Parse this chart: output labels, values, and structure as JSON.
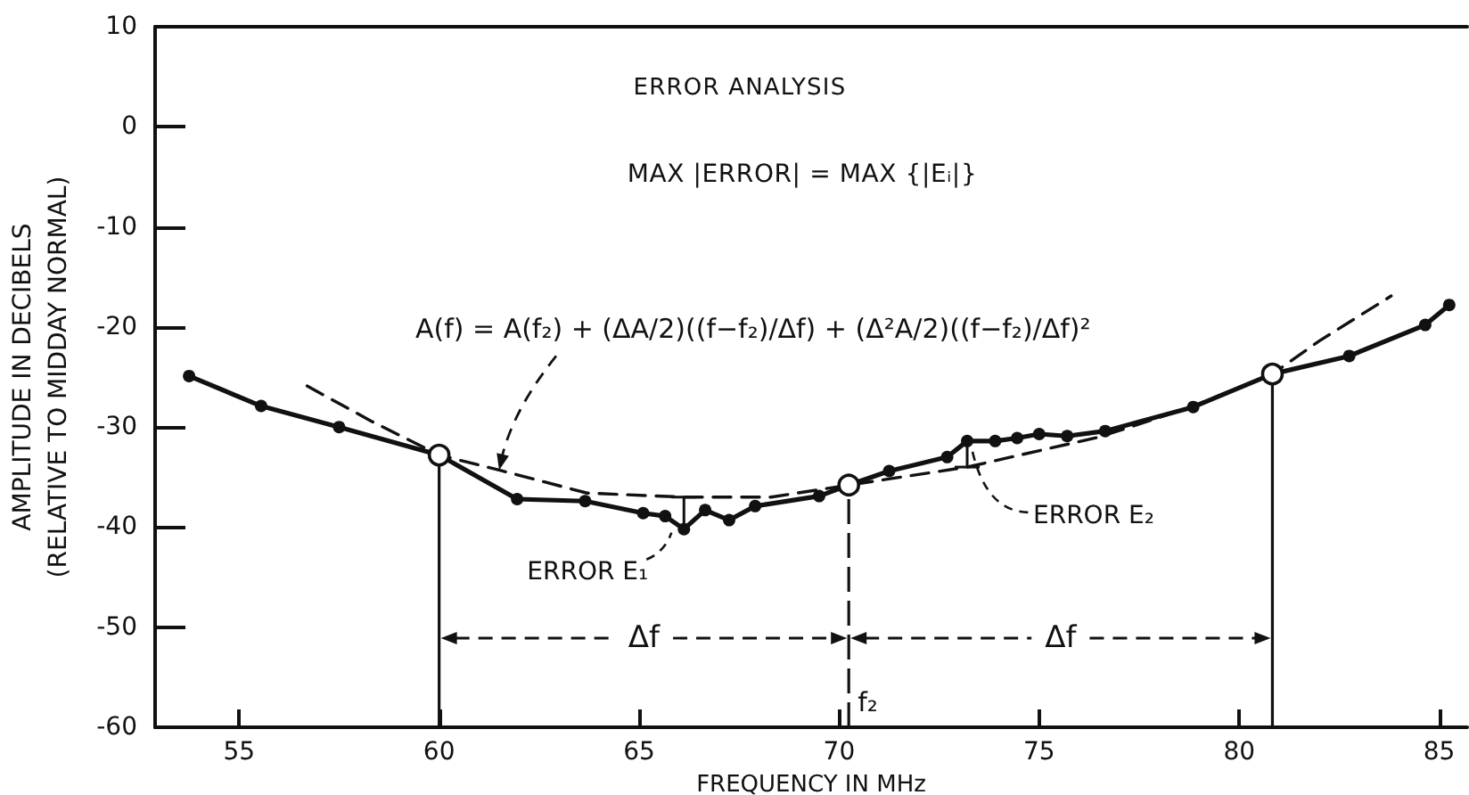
{
  "chart_data": {
    "type": "line",
    "title": "ERROR ANALYSIS",
    "subtitle": "MAX |ERROR| = MAX {|Eᵢ|}",
    "xlabel": "FREQUENCY IN MHz",
    "ylabel": "AMPLITUDE IN DECIBELS\n(RELATIVE TO MIDDAY NORMAL)",
    "xlim": [
      52.9,
      85.7
    ],
    "xticks": [
      55,
      60,
      65,
      70,
      75,
      80,
      85
    ],
    "ylim": [
      -60,
      10
    ],
    "yticks": [
      -60,
      -50,
      -40,
      -30,
      -20,
      -10,
      0,
      10
    ],
    "grid": false,
    "series": [
      {
        "color": "#111111",
        "marker": "circle",
        "line_style": "solid",
        "x": [
          53.75,
          55.55,
          57.5,
          60,
          61.95,
          63.65,
          65.1,
          65.65,
          66.12,
          66.65,
          67.25,
          67.9,
          69.5,
          70.24,
          71.25,
          72.7,
          73.2,
          73.9,
          74.45,
          75.0,
          75.7,
          76.65,
          78.85,
          80.83,
          82.75,
          84.65,
          85.25
        ],
        "values": [
          -24.9,
          -27.9,
          -30.0,
          -32.8,
          -37.2,
          -37.4,
          -38.6,
          -38.9,
          -40.2,
          -38.3,
          -39.3,
          -37.9,
          -36.9,
          -35.8,
          -34.4,
          -33.0,
          -31.4,
          -31.4,
          -31.1,
          -30.7,
          -30.9,
          -30.4,
          -28.0,
          -24.7,
          -22.9,
          -19.8,
          -17.8
        ]
      },
      {
        "color": "#111111",
        "marker": "none",
        "line_style": "dashed",
        "x": [
          56.7,
          58.3,
          60,
          61.5,
          63.7,
          66.1,
          68.3,
          70.24,
          73.2,
          76.5,
          78.8,
          80.83,
          82.0,
          83.8
        ],
        "values": [
          -25.9,
          -29.4,
          -32.8,
          -34.3,
          -36.6,
          -37.0,
          -37.0,
          -35.8,
          -34.0,
          -31.0,
          -28.0,
          -24.7,
          -21.4,
          -16.9
        ]
      },
      {
        "type": "scatter",
        "color": "#111111",
        "marker": "circle",
        "x": [
          60,
          70.24,
          80.83
        ],
        "values": [
          -32.8,
          -35.8,
          -24.7
        ]
      }
    ],
    "ref_lines": [
      {
        "axis": "x",
        "value": 60
      },
      {
        "axis": "x",
        "value": 70.24,
        "label": "f₂",
        "line_style": "dashed"
      },
      {
        "axis": "x",
        "value": 80.83
      }
    ],
    "annotations": [
      {
        "text": "A(f) = A(f₂) + (ΔA/2)((f−f₂)/Δf) + (Δ²A/2)((f−f₂)/Δf)²",
        "x": 61.5,
        "y": -34.3
      },
      {
        "text": "ERROR E₁",
        "x": 66.12,
        "y": -40.2
      },
      {
        "text": "ERROR E₂",
        "x": 73.2,
        "y": -31.4
      },
      "Δf",
      "Δf"
    ]
  }
}
